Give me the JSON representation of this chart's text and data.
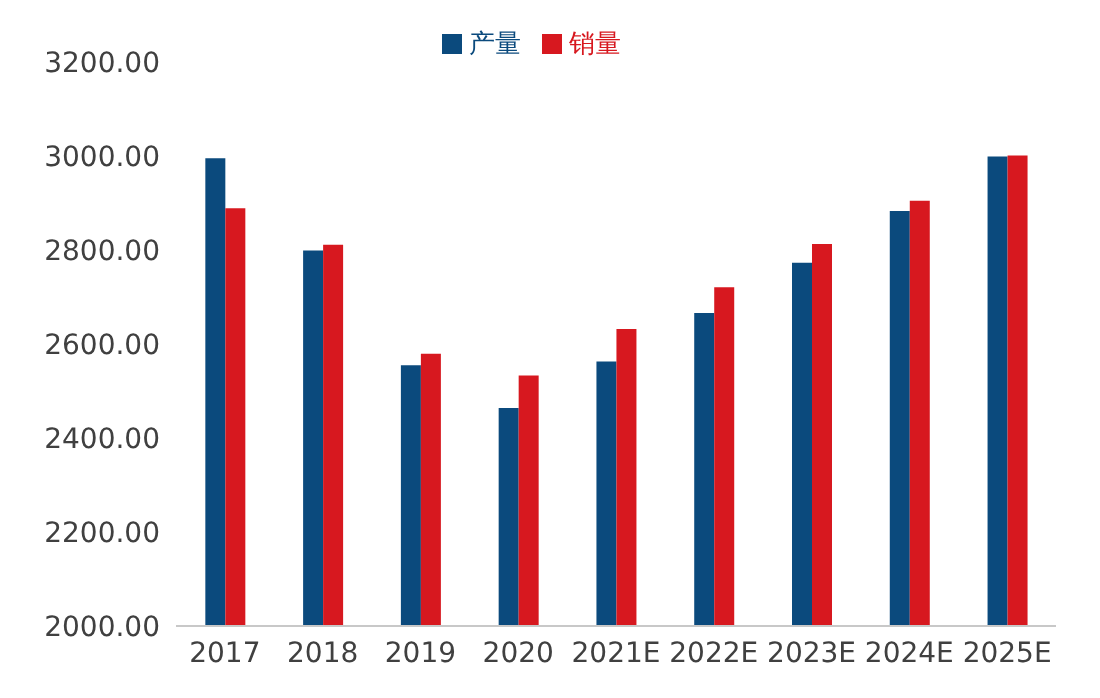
{
  "chart_data": {
    "type": "bar",
    "categories": [
      "2017",
      "2018",
      "2019",
      "2020",
      "2021E",
      "2022E",
      "2023E",
      "2024E",
      "2025E"
    ],
    "series": [
      {
        "name": "产量",
        "color": "#0b4a7d",
        "values": [
          2995,
          2799,
          2555,
          2464,
          2563,
          2666,
          2773,
          2883,
          2999
        ]
      },
      {
        "name": "销量",
        "color": "#d7181f",
        "values": [
          2889,
          2811,
          2579,
          2533,
          2632,
          2721,
          2813,
          2905,
          3001
        ]
      }
    ],
    "ylim": [
      2000,
      3200
    ],
    "yticks": [
      {
        "value": 2000,
        "label": "2000.00"
      },
      {
        "value": 2200,
        "label": "2200.00"
      },
      {
        "value": 2400,
        "label": "2400.00"
      },
      {
        "value": 2600,
        "label": "2600.00"
      },
      {
        "value": 2800,
        "label": "2800.00"
      },
      {
        "value": 3000,
        "label": "3000.00"
      },
      {
        "value": 3200,
        "label": "3200.00"
      }
    ],
    "grid": false,
    "legend": "top"
  }
}
